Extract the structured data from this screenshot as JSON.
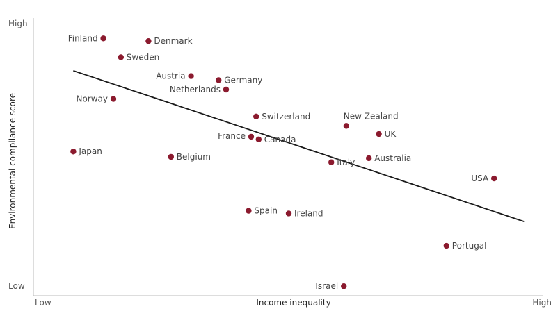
{
  "chart_data": {
    "type": "scatter",
    "xlabel": "Income inequality",
    "ylabel": "Environmental compliance score",
    "x_tick_labels": {
      "low": "Low",
      "high": "High"
    },
    "y_tick_labels": {
      "low": "Low",
      "high": "High"
    },
    "xlim": [
      0,
      100
    ],
    "ylim": [
      0,
      100
    ],
    "grid": false,
    "legend": "none",
    "point_color": "#8b1a2e",
    "trendline": {
      "x": [
        7,
        97
      ],
      "y": [
        82,
        26
      ]
    },
    "points": [
      {
        "name": "Finland",
        "x": 13,
        "y": 94
      },
      {
        "name": "Denmark",
        "x": 22,
        "y": 93
      },
      {
        "name": "Sweden",
        "x": 16.5,
        "y": 87
      },
      {
        "name": "Austria",
        "x": 30.5,
        "y": 80
      },
      {
        "name": "Germany",
        "x": 36,
        "y": 78.5
      },
      {
        "name": "Netherlands",
        "x": 37.5,
        "y": 75
      },
      {
        "name": "Norway",
        "x": 15,
        "y": 71.5
      },
      {
        "name": "Switzerland",
        "x": 43.5,
        "y": 65
      },
      {
        "name": "New Zealand",
        "x": 61.5,
        "y": 61.5
      },
      {
        "name": "UK",
        "x": 68,
        "y": 58.5
      },
      {
        "name": "France",
        "x": 42.5,
        "y": 57.5
      },
      {
        "name": "Canada",
        "x": 44,
        "y": 56.5
      },
      {
        "name": "Japan",
        "x": 7,
        "y": 52
      },
      {
        "name": "Belgium",
        "x": 26.5,
        "y": 50
      },
      {
        "name": "Australia",
        "x": 66,
        "y": 49.5
      },
      {
        "name": "Italy",
        "x": 58.5,
        "y": 48
      },
      {
        "name": "USA",
        "x": 91,
        "y": 42
      },
      {
        "name": "Spain",
        "x": 42,
        "y": 30
      },
      {
        "name": "Ireland",
        "x": 50,
        "y": 29
      },
      {
        "name": "Portugal",
        "x": 81.5,
        "y": 17
      },
      {
        "name": "Israel",
        "x": 61,
        "y": 2
      }
    ]
  }
}
